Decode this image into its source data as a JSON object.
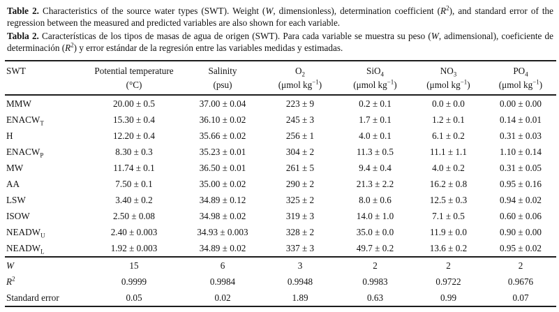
{
  "captions": {
    "english": "**Table 2.** Characteristics of the source water types (SWT). Weight (*W*, dimensionless), determination coefficient (*R*^2^), and standard error of the regression between the measured and predicted variables are also shown for each variable.",
    "spanish": "**Tabla 2.** Características de los tipos de masas de agua de origen (SWT). Para cada variable se muestra su peso (*W*, adimensional), coeficiente de determinación (*R*^2^) y error estándar de la regresión entre las variables medidas y estimadas."
  },
  "table": {
    "columns": [
      {
        "id": "swt",
        "title": "SWT",
        "unit": ""
      },
      {
        "id": "potential-temperature",
        "title": "Potential temperature",
        "unit": "(°C)"
      },
      {
        "id": "salinity",
        "title": "Salinity",
        "unit": "(psu)"
      },
      {
        "id": "o2",
        "title": "O~2~",
        "unit": "(μmol kg^−1^)"
      },
      {
        "id": "sio4",
        "title": "SiO~4~",
        "unit": "(μmol kg^−1^)"
      },
      {
        "id": "no3",
        "title": "NO~3~",
        "unit": "(μmol kg^−1^)"
      },
      {
        "id": "po4",
        "title": "PO~4~",
        "unit": "(μmol kg^−1^)"
      }
    ],
    "rows": [
      [
        "MMW",
        "20.00 ± 0.5",
        "37.00 ± 0.04",
        "223 ± 9",
        "0.2 ± 0.1",
        "0.0 ± 0.0",
        "0.00 ± 0.00"
      ],
      [
        "ENACW~T~",
        "15.30 ± 0.4",
        "36.10 ± 0.02",
        "245 ± 3",
        "1.7 ± 0.1",
        "1.2 ± 0.1",
        "0.14 ± 0.01"
      ],
      [
        "H",
        "12.20 ± 0.4",
        "35.66 ± 0.02",
        "256 ± 1",
        "4.0 ± 0.1",
        "6.1 ± 0.2",
        "0.31 ± 0.03"
      ],
      [
        "ENACW~P~",
        "8.30 ± 0.3",
        "35.23 ± 0.01",
        "304 ± 2",
        "11.3 ± 0.5",
        "11.1 ± 1.1",
        "1.10 ± 0.14"
      ],
      [
        "MW",
        "11.74 ± 0.1",
        "36.50 ± 0.01",
        "261 ± 5",
        "9.4 ± 0.4",
        "4.0 ± 0.2",
        "0.31 ± 0.05"
      ],
      [
        "AA",
        "7.50 ± 0.1",
        "35.00 ± 0.02",
        "290 ± 2",
        "21.3 ± 2.2",
        "16.2 ± 0.8",
        "0.95 ± 0.16"
      ],
      [
        "LSW",
        "3.40 ± 0.2",
        "34.89 ± 0.12",
        "325 ± 2",
        "8.0 ± 0.6",
        "12.5 ± 0.3",
        "0.94 ± 0.02"
      ],
      [
        "ISOW",
        "2.50 ± 0.08",
        "34.98 ± 0.02",
        "319 ± 3",
        "14.0 ± 1.0",
        "7.1 ± 0.5",
        "0.60 ± 0.06"
      ],
      [
        "NEADW~U~",
        "2.40 ± 0.003",
        "34.93 ± 0.003",
        "328 ± 2",
        "35.0 ± 0.0",
        "11.9 ± 0.0",
        "0.90 ± 0.00"
      ],
      [
        "NEADW~L~",
        "1.92 ± 0.003",
        "34.89 ± 0.02",
        "337 ± 3",
        "49.7 ± 0.2",
        "13.6 ± 0.2",
        "0.95 ± 0.02"
      ]
    ],
    "stat_rows": [
      [
        "*W*",
        "15",
        "6",
        "3",
        "2",
        "2",
        "2"
      ],
      [
        "*R*^2^",
        "0.9999",
        "0.9984",
        "0.9948",
        "0.9983",
        "0.9722",
        "0.9676"
      ],
      [
        "Standard error",
        "0.05",
        "0.02",
        "1.89",
        "0.63",
        "0.99",
        "0.07"
      ]
    ]
  }
}
